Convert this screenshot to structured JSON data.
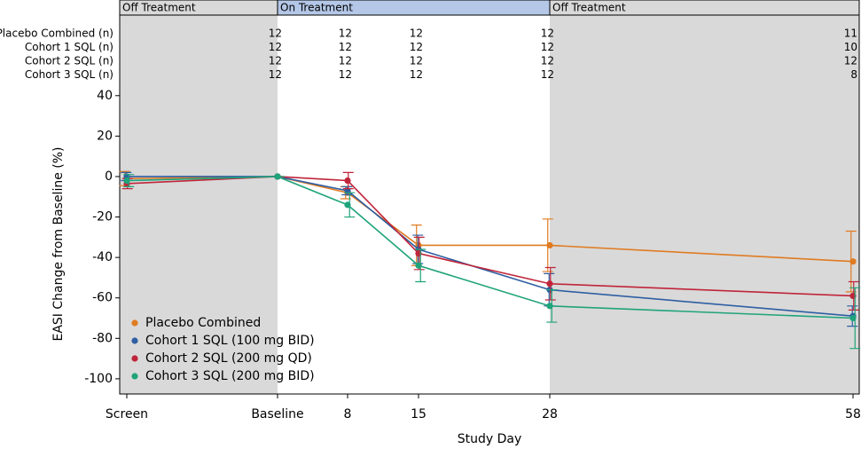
{
  "chart_data": {
    "type": "line",
    "title": null,
    "xlabel": "Study Day",
    "ylabel": "EASI Change from Baseline (%)",
    "categories": [
      "Screen",
      "Baseline",
      "8",
      "15",
      "28",
      "58"
    ],
    "ylim": [
      -104,
      50
    ],
    "yticks": [
      40,
      20,
      0,
      -20,
      -40,
      -60,
      -80,
      -100
    ],
    "phases": [
      {
        "label": "Off Treatment",
        "color": "#d9d9d9"
      },
      {
        "label": "On Treatment",
        "color": "#b4c7e7"
      },
      {
        "label": "Off Treatment",
        "color": "#d9d9d9"
      }
    ],
    "legend": "lower left",
    "series": [
      {
        "name": "Placebo Combined",
        "n_label": "Placebo Combined (n)",
        "color": "#e07b22",
        "values": [
          -1,
          0,
          -8,
          -34,
          -34,
          -42
        ],
        "errors": [
          3.5,
          0,
          3,
          10,
          13,
          15
        ],
        "n": [
          null,
          12,
          12,
          12,
          12,
          11
        ]
      },
      {
        "name": "Cohort 1 SQL (100 mg BID)",
        "n_label": "Cohort 1 SQL (n)",
        "color": "#2e5fa3",
        "values": [
          0,
          0,
          -7,
          -36,
          -56,
          -69
        ],
        "errors": [
          2,
          0,
          2,
          7,
          8,
          5
        ],
        "n": [
          null,
          12,
          12,
          12,
          12,
          10
        ]
      },
      {
        "name": "Cohort 2 SQL (200 mg QD)",
        "n_label": "Cohort 2 SQL (n)",
        "color": "#c0253a",
        "values": [
          -3.5,
          0,
          -2,
          -38,
          -53,
          -59
        ],
        "errors": [
          2.5,
          0,
          4,
          8,
          8,
          7
        ],
        "n": [
          null,
          12,
          12,
          12,
          12,
          12
        ]
      },
      {
        "name": "Cohort 3 SQL (200 mg BID)",
        "n_label": "Cohort 3 SQL (n)",
        "color": "#1fa37a",
        "values": [
          -2,
          0,
          -14,
          -44,
          -64,
          -70
        ],
        "errors": [
          3,
          0,
          6,
          8,
          8,
          15
        ],
        "n": [
          null,
          12,
          12,
          12,
          12,
          8
        ]
      }
    ]
  }
}
